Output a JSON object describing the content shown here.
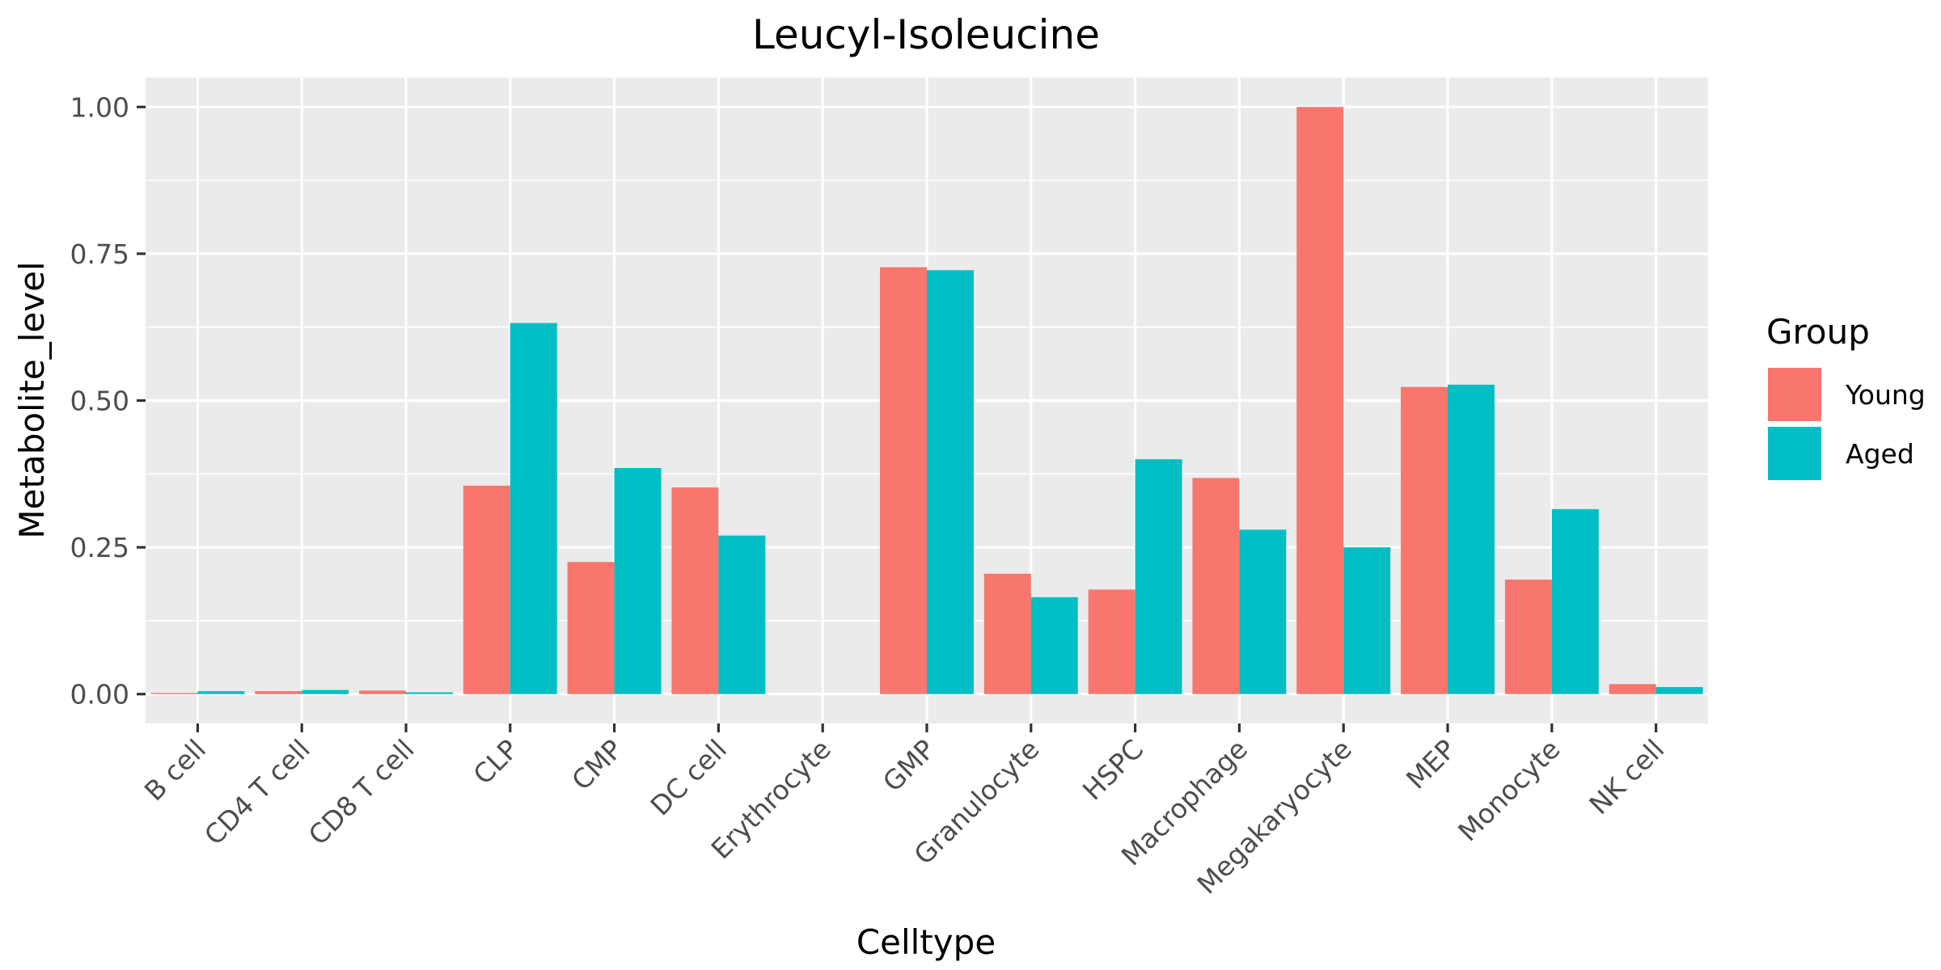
{
  "chart_data": {
    "type": "bar",
    "title": "Leucyl-Isoleucine",
    "xlabel": "Celltype",
    "ylabel": "Metabolite_level",
    "ylim": [
      -0.05,
      1.05
    ],
    "yticks": [
      0.0,
      0.25,
      0.5,
      0.75,
      1.0
    ],
    "ytick_labels": [
      "0.00",
      "0.25",
      "0.50",
      "0.75",
      "1.00"
    ],
    "grid": true,
    "legend": {
      "title": "Group",
      "position": "right"
    },
    "categories": [
      "B cell",
      "CD4 T cell",
      "CD8 T cell",
      "CLP",
      "CMP",
      "DC cell",
      "Erythrocyte",
      "GMP",
      "Granulocyte",
      "HSPC",
      "Macrophage",
      "Megakaryocyte",
      "MEP",
      "Monocyte",
      "NK cell"
    ],
    "series": [
      {
        "name": "Young",
        "color": "#F8766D",
        "values": [
          0.002,
          0.005,
          0.006,
          0.355,
          0.225,
          0.352,
          0.0,
          0.727,
          0.205,
          0.178,
          0.368,
          1.0,
          0.523,
          0.195,
          0.017
        ]
      },
      {
        "name": "Aged",
        "color": "#00BFC4",
        "values": [
          0.005,
          0.007,
          0.003,
          0.632,
          0.385,
          0.27,
          0.0,
          0.722,
          0.165,
          0.4,
          0.28,
          0.25,
          0.527,
          0.315,
          0.012
        ]
      }
    ]
  }
}
